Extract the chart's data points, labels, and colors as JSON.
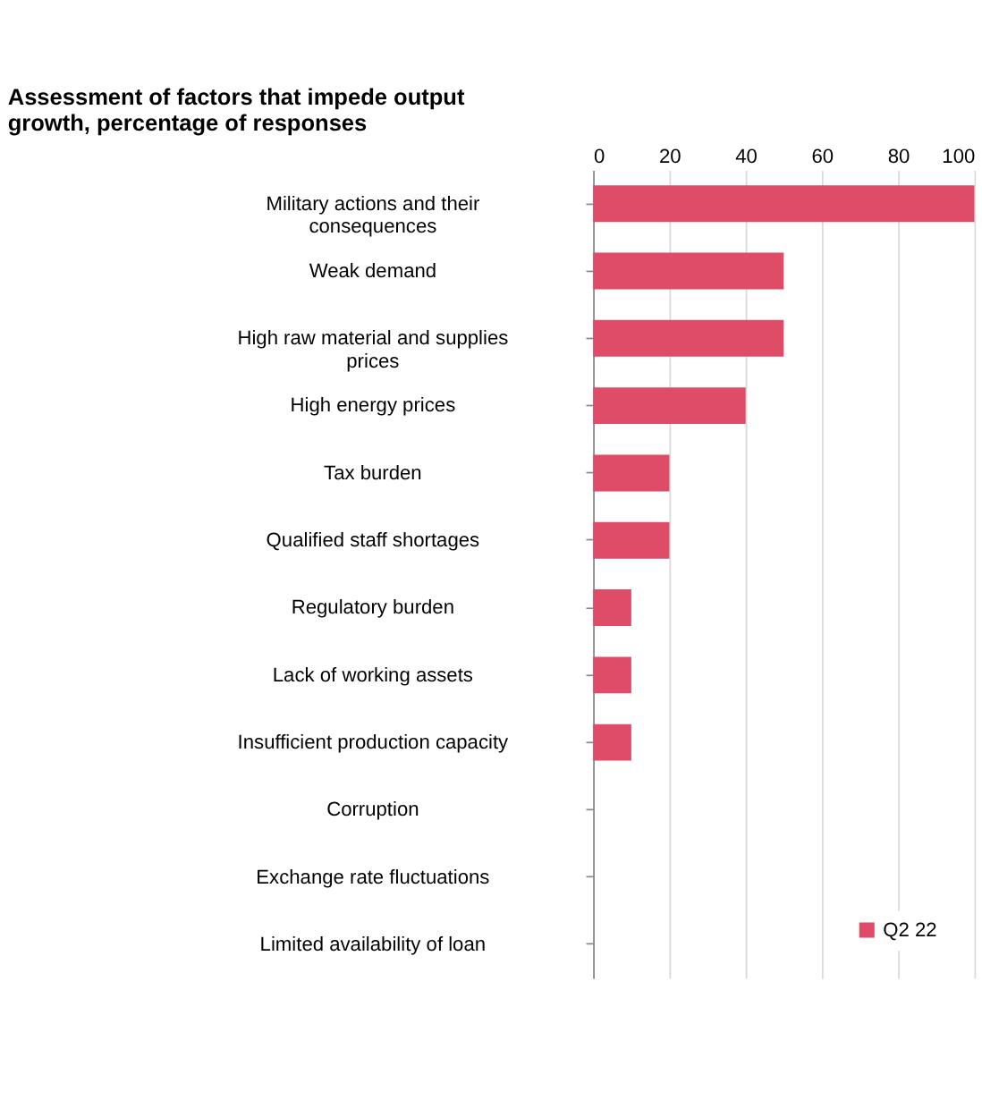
{
  "chart_data": {
    "type": "bar",
    "orientation": "horizontal",
    "title": "Assessment of factors that impede output growth, percentage of responses",
    "categories": [
      "Military actions and their consequences",
      "Weak demand",
      "High raw material and supplies prices",
      "High energy prices",
      "Tax burden",
      "Qualified staff shortages",
      "Regulatory burden",
      "Lack of working assets",
      "Insufficient production capacity",
      "Corruption",
      "Exchange rate fluctuations",
      "Limited availability of loan"
    ],
    "series": [
      {
        "name": "Q2 22",
        "color": "#de4c67",
        "values": [
          100,
          50,
          50,
          40,
          20,
          20,
          10,
          10,
          10,
          0,
          0,
          0
        ]
      }
    ],
    "xlim": [
      0,
      100
    ],
    "xticks": [
      0,
      20,
      40,
      60,
      80,
      100
    ],
    "grid": "x",
    "legend": "bottom right"
  }
}
